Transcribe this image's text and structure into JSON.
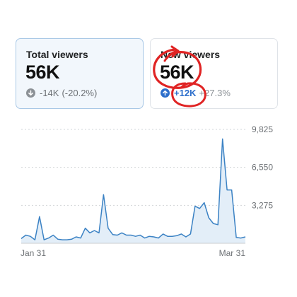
{
  "cards": {
    "total": {
      "title": "Total viewers",
      "value": "56K",
      "delta": "-14K",
      "pct": "(-20.2%)"
    },
    "new": {
      "title": "New viewers",
      "value": "56K",
      "delta": "+12K",
      "pct": "+27.3%"
    }
  },
  "colors": {
    "accent": "#2c6ecb",
    "line": "#3b82c4",
    "annotation": "#e02424"
  },
  "chart_data": {
    "type": "line",
    "x_tick_labels": [
      "Jan 31",
      "Mar 31"
    ],
    "y_tick_labels": [
      "9,825",
      "6,550",
      "3,275"
    ],
    "ylim": [
      0,
      9825
    ],
    "grid": true,
    "series": [
      {
        "values": [
          400,
          700,
          600,
          300,
          2300,
          300,
          450,
          700,
          350,
          300,
          300,
          350,
          550,
          450,
          1300,
          900,
          1100,
          900,
          4200,
          1300,
          750,
          700,
          900,
          700,
          700,
          600,
          700,
          450,
          600,
          550,
          450,
          800,
          600,
          600,
          650,
          800,
          550,
          800,
          3200,
          3000,
          3500,
          2200,
          1700,
          1600,
          9000,
          4600,
          4600,
          500,
          450,
          550
        ]
      }
    ]
  }
}
